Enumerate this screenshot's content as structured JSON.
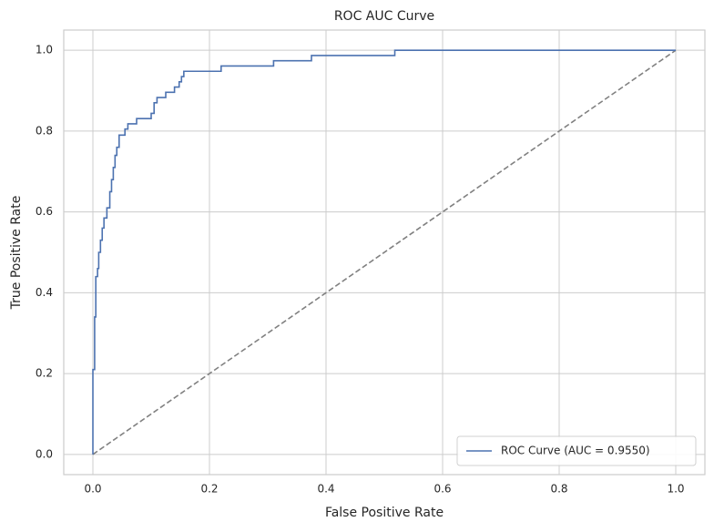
{
  "chart_data": {
    "type": "line",
    "title": "ROC AUC Curve",
    "x_label": "False Positive Rate",
    "y_label": "True Positive Rate",
    "xlim": [
      -0.05,
      1.05
    ],
    "ylim": [
      -0.05,
      1.05
    ],
    "xticks": [
      {
        "value": 0,
        "label": "0.0"
      },
      0.2,
      0.4,
      0.6,
      0.8,
      {
        "value": 1,
        "label": "1.0"
      }
    ],
    "yticks": [
      {
        "value": 0,
        "label": "0.0"
      },
      0.2,
      0.4,
      0.6,
      0.8,
      {
        "value": 1,
        "label": "1.0"
      }
    ],
    "grid": true,
    "legend": "lower right",
    "series": [
      {
        "name": "ROC Curve (AUC = 0.9550)",
        "color": "#4c72b0",
        "linestyle": "solid",
        "x": [
          0,
          0,
          0.003,
          0.003,
          0.005,
          0.005,
          0.008,
          0.008,
          0.01,
          0.01,
          0.013,
          0.013,
          0.016,
          0.016,
          0.019,
          0.019,
          0.024,
          0.024,
          0.029,
          0.029,
          0.032,
          0.032,
          0.035,
          0.035,
          0.038,
          0.038,
          0.041,
          0.041,
          0.045,
          0.045,
          0.055,
          0.055,
          0.06,
          0.06,
          0.075,
          0.075,
          0.1,
          0.1,
          0.105,
          0.105,
          0.11,
          0.11,
          0.125,
          0.125,
          0.14,
          0.14,
          0.148,
          0.148,
          0.152,
          0.152,
          0.156,
          0.156,
          0.22,
          0.22,
          0.31,
          0.31,
          0.375,
          0.375,
          0.518,
          0.518,
          1
        ],
        "values": [
          0,
          0.21,
          0.21,
          0.34,
          0.34,
          0.44,
          0.44,
          0.46,
          0.46,
          0.5,
          0.5,
          0.53,
          0.53,
          0.56,
          0.56,
          0.585,
          0.585,
          0.61,
          0.61,
          0.65,
          0.65,
          0.68,
          0.68,
          0.71,
          0.71,
          0.74,
          0.74,
          0.76,
          0.76,
          0.79,
          0.79,
          0.805,
          0.805,
          0.818,
          0.818,
          0.831,
          0.831,
          0.844,
          0.844,
          0.87,
          0.87,
          0.883,
          0.883,
          0.896,
          0.896,
          0.909,
          0.909,
          0.922,
          0.922,
          0.935,
          0.935,
          0.948,
          0.948,
          0.961,
          0.961,
          0.974,
          0.974,
          0.987,
          0.987,
          1,
          1
        ]
      },
      {
        "color": "#808080",
        "linestyle": "dashed",
        "x": [
          0,
          1
        ],
        "values": [
          0,
          1
        ]
      }
    ]
  }
}
